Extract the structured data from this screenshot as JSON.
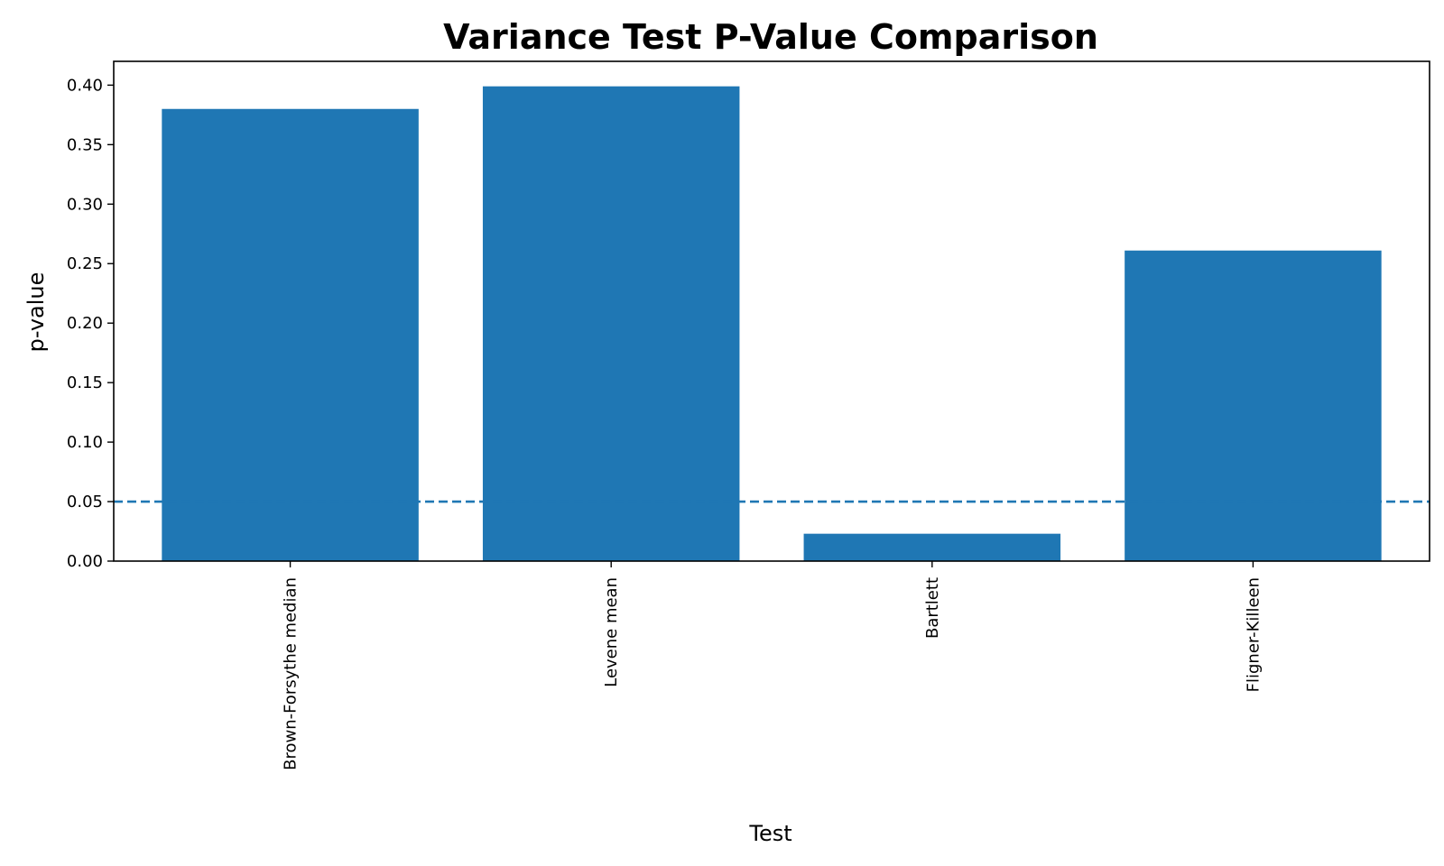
{
  "chart_data": {
    "type": "bar",
    "title": "Variance Test P-Value Comparison",
    "xlabel": "Test",
    "ylabel": "p-value",
    "categories": [
      "Brown-Forsythe median",
      "Levene mean",
      "Bartlett",
      "Fligner-Killeen"
    ],
    "values": [
      0.38,
      0.399,
      0.023,
      0.261
    ],
    "ylim": [
      0,
      0.42
    ],
    "yticks": [
      0.0,
      0.05,
      0.1,
      0.15,
      0.2,
      0.25,
      0.3,
      0.35,
      0.4
    ],
    "reference_line": {
      "y": 0.05,
      "style": "dashed"
    },
    "bar_color": "#1f77b4",
    "line_color": "#1f77b4",
    "grid": false,
    "legend": "none"
  }
}
